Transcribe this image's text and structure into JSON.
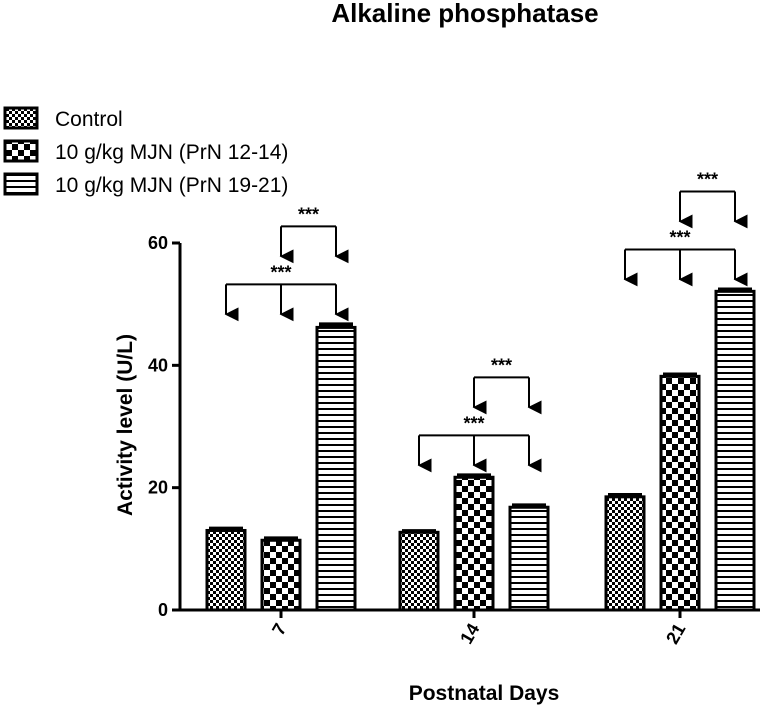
{
  "chart_data": {
    "type": "bar",
    "title": "Alkaline phosphatase",
    "xlabel": "Postnatal Days",
    "ylabel": "Activity level (U/L)",
    "categories": [
      "7",
      "14",
      "21"
    ],
    "ylim": [
      0,
      60
    ],
    "yticks": [
      0,
      20,
      40,
      60
    ],
    "grid": false,
    "legend_position": "top-left",
    "series": [
      {
        "name": "Control",
        "pattern": "fine-checker",
        "values": [
          13.0,
          12.7,
          18.5
        ],
        "errors": [
          0.3,
          0.2,
          0.3
        ]
      },
      {
        "name": "10 g/kg MJN (PrN 12-14)",
        "pattern": "coarse-checker",
        "values": [
          11.4,
          21.7,
          38.2
        ],
        "errors": [
          0.3,
          0.3,
          0.3
        ]
      },
      {
        "name": "10 g/kg MJN (PrN 19-21)",
        "pattern": "horizontal-stripes",
        "values": [
          46.2,
          16.8,
          52.1
        ],
        "errors": [
          0.5,
          0.3,
          0.3
        ]
      }
    ],
    "significance": [
      {
        "category": 0,
        "bars": [
          0,
          1,
          2
        ],
        "label": "***"
      },
      {
        "category": 0,
        "bars": [
          1,
          2
        ],
        "label": "***"
      },
      {
        "category": 1,
        "bars": [
          0,
          1,
          2
        ],
        "label": "***"
      },
      {
        "category": 1,
        "bars": [
          1,
          2
        ],
        "label": "***"
      },
      {
        "category": 2,
        "bars": [
          0,
          1,
          2
        ],
        "label": "***"
      },
      {
        "category": 2,
        "bars": [
          1,
          2
        ],
        "label": "***"
      }
    ]
  }
}
